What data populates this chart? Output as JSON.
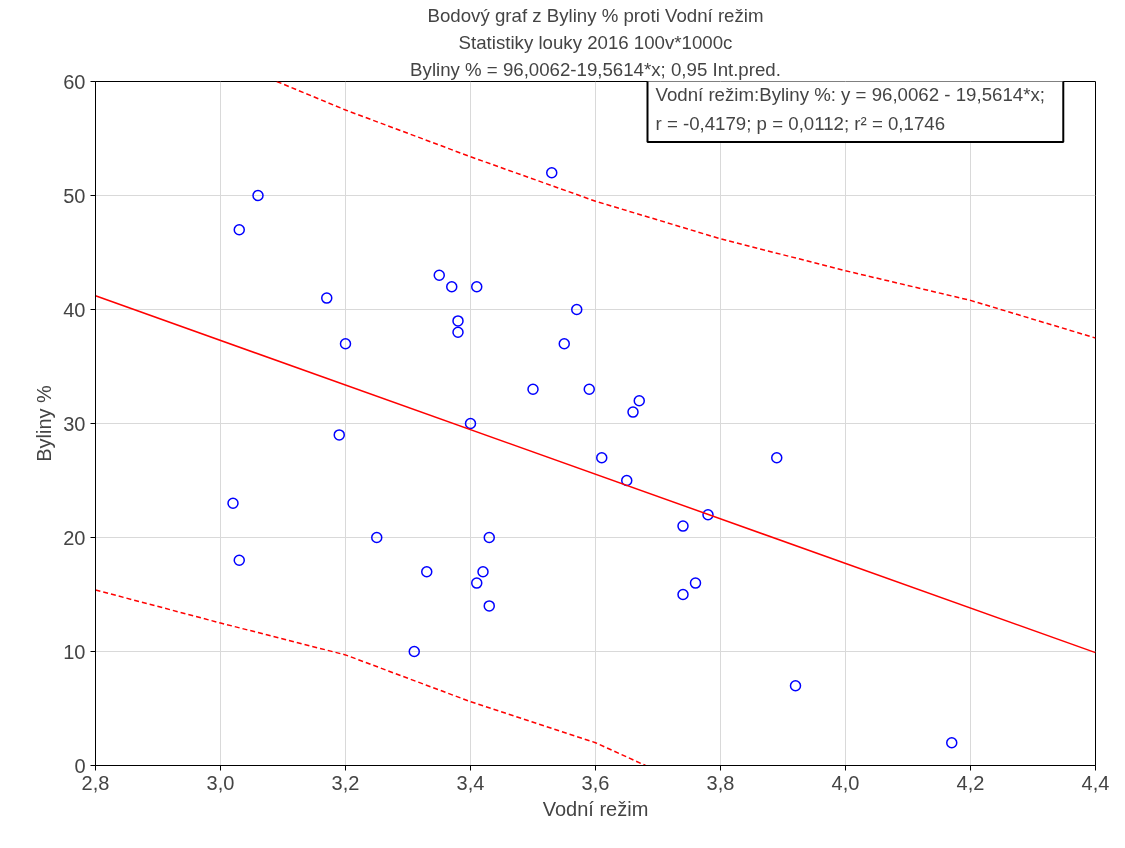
{
  "chart_data": {
    "type": "scatter",
    "title": "Bodový graf z Byliny % proti Vodní režim",
    "subtitle": "Statistiky louky 2016 100v*1000c",
    "xlabel": "Vodní režim",
    "ylabel": "Byliny %",
    "annotations": [
      "Byliny % = 96,0062-19,5614*x; 0,95 Int.pred.",
      "Vodní režim:Byliny %:   y = 96,0062 - 19,5614*x;\nr = -0,4179; p = 0,0112; r² = 0,1746"
    ],
    "series": [
      {
        "color": "#0000ff",
        "marker": "circle",
        "x": [
          3.06,
          3.03,
          3.17,
          3.2,
          3.19,
          3.02,
          3.03,
          3.25,
          3.35,
          3.37,
          3.41,
          3.38,
          3.38,
          3.53,
          3.57,
          3.55,
          3.5,
          3.59,
          3.4,
          3.67,
          3.66,
          3.61,
          3.65,
          3.78,
          3.74,
          3.43,
          3.42,
          3.41,
          3.33,
          3.43,
          3.31,
          3.74,
          3.76,
          3.89,
          3.92,
          4.17
        ],
        "values": [
          50,
          47,
          41,
          37,
          29,
          23,
          18,
          20,
          43,
          42,
          42,
          39,
          38,
          52,
          40,
          37,
          33,
          33,
          30,
          32,
          31,
          27,
          25,
          22,
          21,
          20,
          17,
          16,
          17,
          14,
          10,
          15,
          16,
          27,
          7,
          2
        ]
      },
      {
        "type": "line",
        "color": "#ff0000",
        "line_style": "solid",
        "x": [
          2.8,
          4.4
        ],
        "values": [
          41.2,
          9.9
        ]
      },
      {
        "type": "line",
        "color": "#ff0000",
        "line_style": "dashed",
        "x": [
          3.09,
          3.2,
          3.4,
          3.6,
          3.8,
          4.0,
          4.2,
          4.4
        ],
        "values": [
          60,
          57.5,
          53.4,
          49.5,
          46.2,
          43.4,
          40.8,
          37.5
        ]
      },
      {
        "type": "line",
        "color": "#ff0000",
        "line_style": "dashed",
        "x": [
          2.8,
          3.0,
          3.2,
          3.4,
          3.6,
          3.68
        ],
        "values": [
          15.4,
          12.5,
          9.7,
          5.6,
          2.0,
          0
        ]
      }
    ],
    "xlim": [
      2.8,
      4.4
    ],
    "ylim": [
      0,
      60
    ],
    "xticks": [
      {
        "value": 2.8,
        "label": "2,8"
      },
      {
        "value": 3.0,
        "label": "3,0"
      },
      {
        "value": 3.2,
        "label": "3,2"
      },
      {
        "value": 3.4,
        "label": "3,4"
      },
      {
        "value": 3.6,
        "label": "3,6"
      },
      {
        "value": 3.8,
        "label": "3,8"
      },
      {
        "value": 4.0,
        "label": "4,0"
      },
      {
        "value": 4.2,
        "label": "4,2"
      },
      {
        "value": 4.4,
        "label": "4,4"
      }
    ],
    "yticks": [
      0,
      10,
      20,
      30,
      40,
      50,
      60
    ],
    "grid": true
  }
}
